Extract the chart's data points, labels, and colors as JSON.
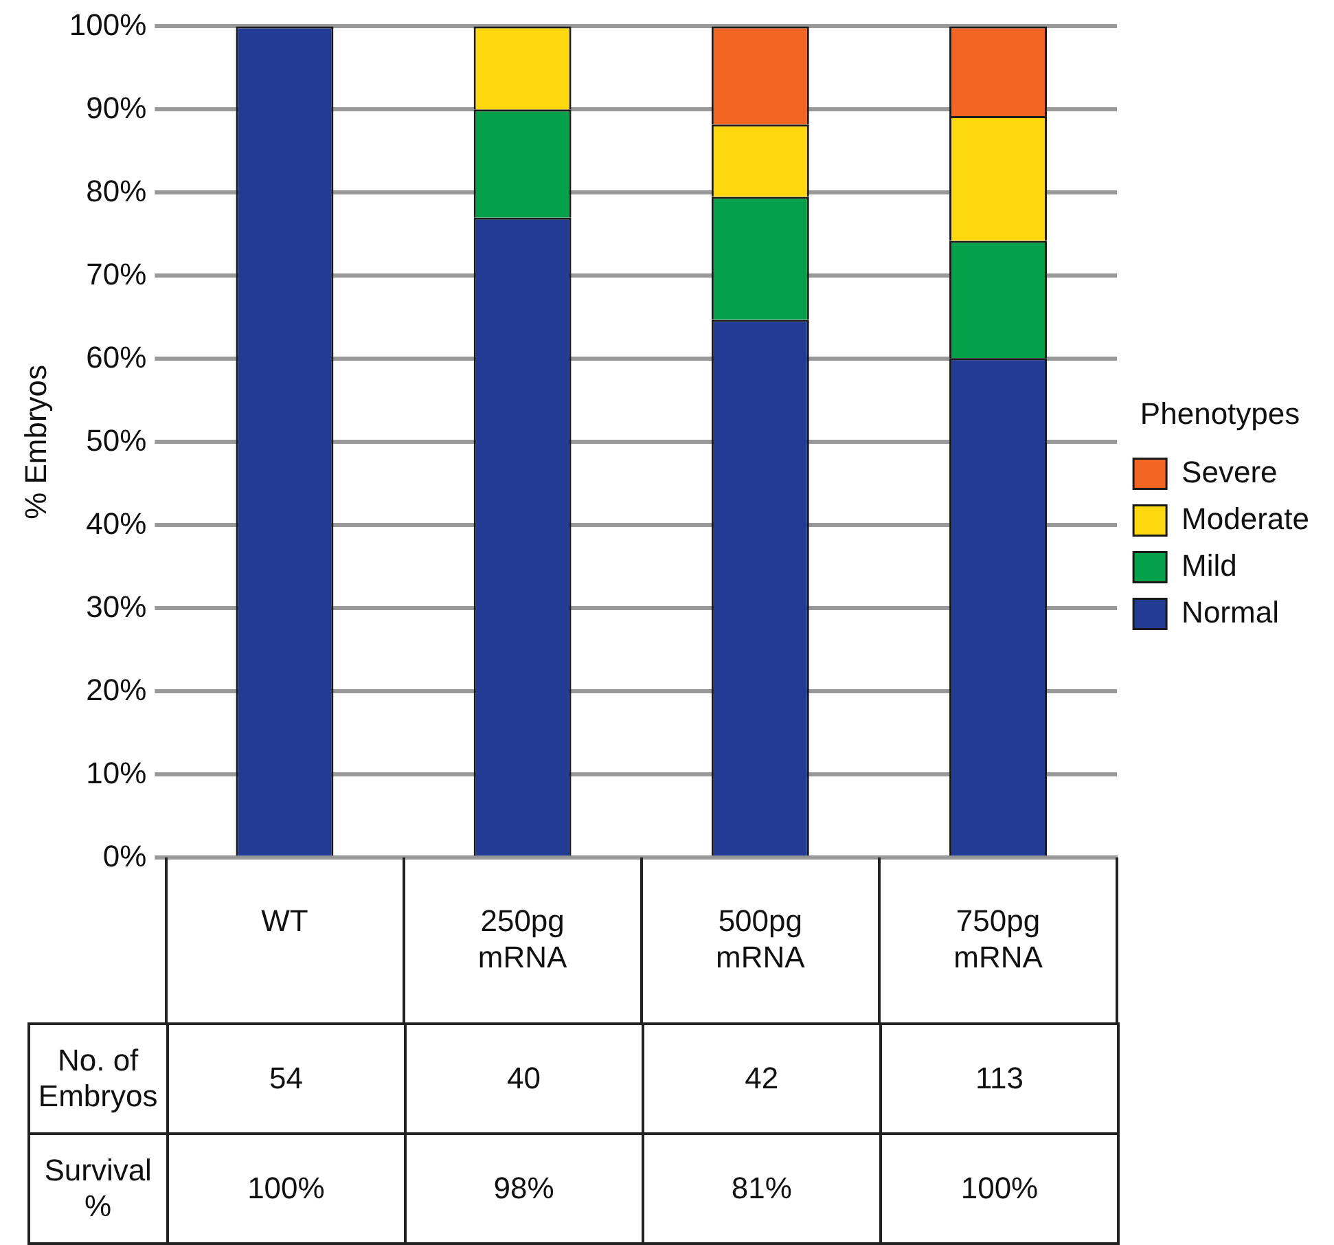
{
  "chart_data": {
    "type": "bar",
    "stacked": true,
    "ylabel": "% Embryos",
    "legend_title": "Phenotypes",
    "legend": "right",
    "categories": [
      "WT",
      "250pg mRNA",
      "500pg mRNA",
      "750pg mRNA"
    ],
    "series": [
      {
        "name": "Normal",
        "color": "#223c95",
        "values": [
          100,
          77,
          64.7,
          60.1
        ]
      },
      {
        "name": "Mild",
        "color": "#05a04a",
        "values": [
          0,
          13,
          14.8,
          14.1
        ]
      },
      {
        "name": "Moderate",
        "color": "#fdd80e",
        "values": [
          0,
          10,
          8.7,
          15
        ]
      },
      {
        "name": "Severe",
        "color": "#f26522",
        "values": [
          0,
          0,
          11.8,
          10.8
        ]
      }
    ],
    "ylim": [
      0,
      100
    ],
    "yticks": [
      {
        "value": 0,
        "label": "0%"
      },
      {
        "value": 10,
        "label": "10%"
      },
      {
        "value": 20,
        "label": "20%"
      },
      {
        "value": 30,
        "label": "30%"
      },
      {
        "value": 40,
        "label": "40%"
      },
      {
        "value": 50,
        "label": "50%"
      },
      {
        "value": 60,
        "label": "60%"
      },
      {
        "value": 70,
        "label": "70%"
      },
      {
        "value": 80,
        "label": "80%"
      },
      {
        "value": 90,
        "label": "90%"
      },
      {
        "value": 100,
        "label": "100%"
      }
    ],
    "grid": "y",
    "annotations": [
      "No. of Embryos",
      "54",
      "40",
      "42",
      "113",
      "Survival %",
      "100%",
      "98%",
      "81%",
      "100%"
    ]
  }
}
